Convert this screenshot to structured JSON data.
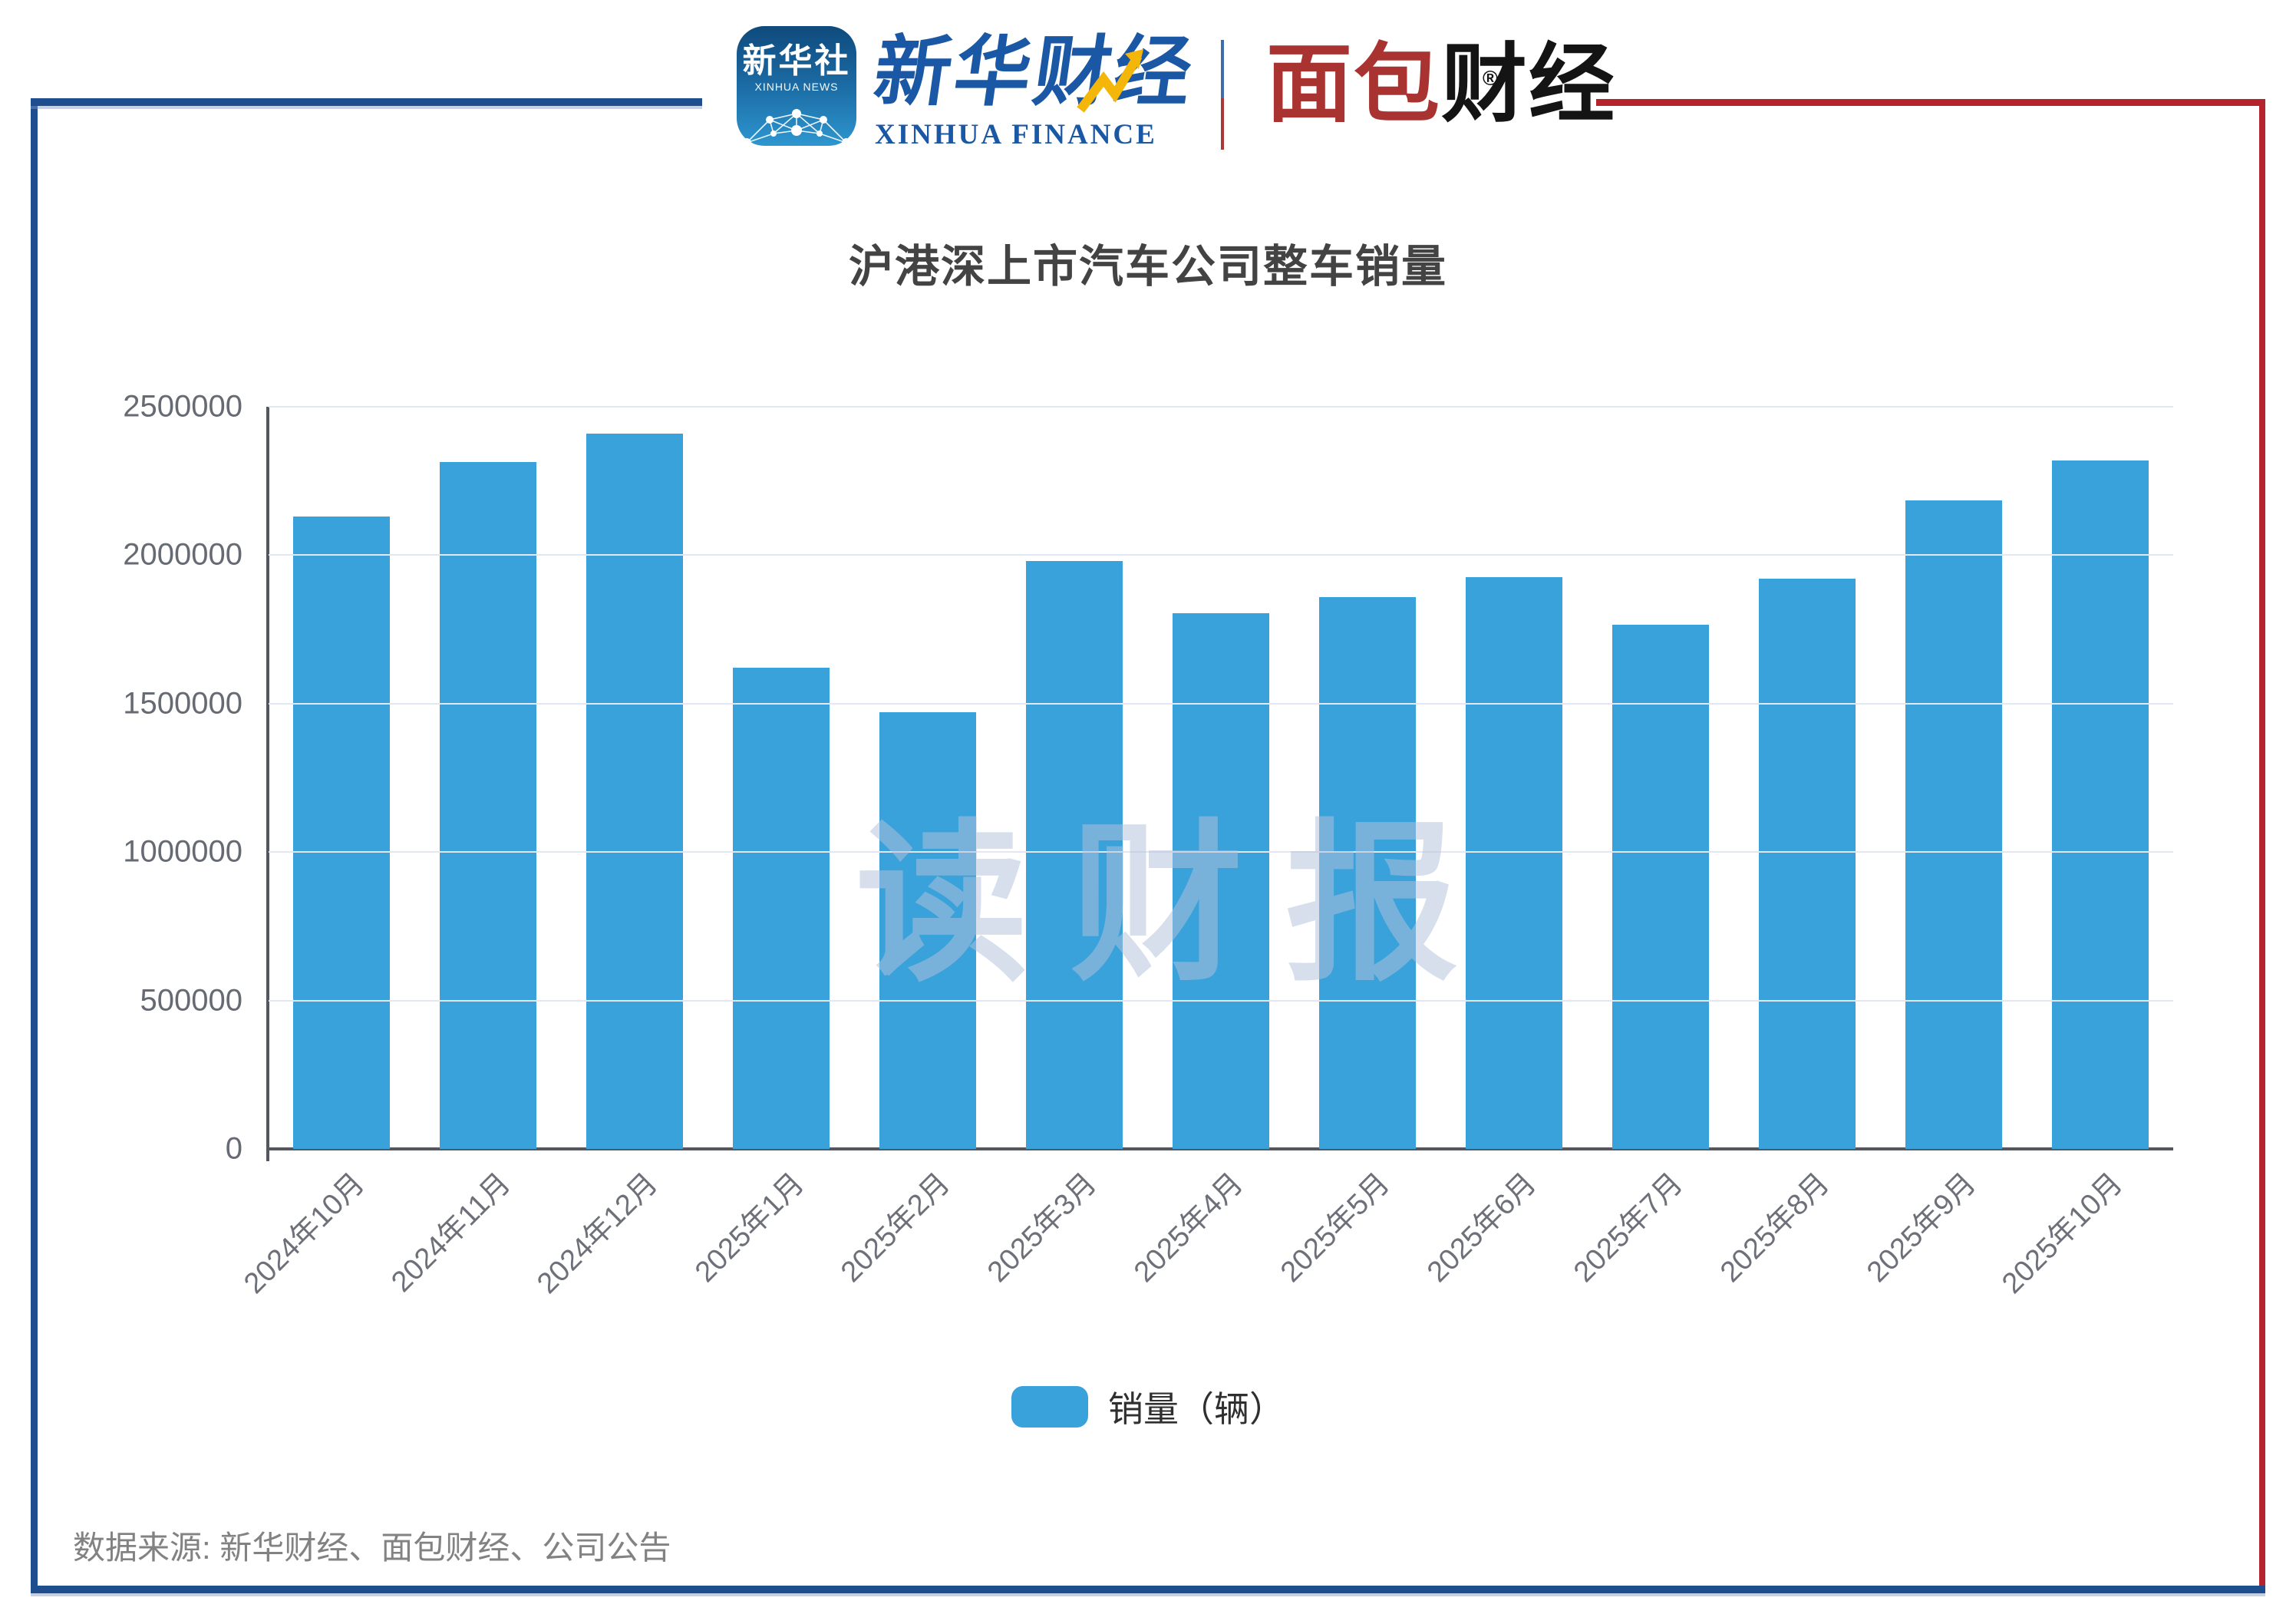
{
  "header": {
    "xinhua_icon": {
      "line1": "新华社",
      "line2": "XINHUA NEWS"
    },
    "xinhua_finance": {
      "cn": "新华财经",
      "en": "XINHUA FINANCE"
    },
    "mianbao": {
      "cn_red": "面包",
      "cn_black": "财经",
      "reg": "®"
    }
  },
  "chart_data": {
    "type": "bar",
    "title": "沪港深上市汽车公司整车销量",
    "categories": [
      "2024年10月",
      "2024年11月",
      "2024年12月",
      "2025年1月",
      "2025年2月",
      "2025年3月",
      "2025年4月",
      "2025年5月",
      "2025年6月",
      "2025年7月",
      "2025年8月",
      "2025年9月",
      "2025年10月"
    ],
    "series": [
      {
        "name": "销量（辆）",
        "values": [
          2130000,
          2315000,
          2410000,
          1620000,
          1470000,
          1980000,
          1805000,
          1860000,
          1925000,
          1765000,
          1920000,
          2185000,
          2320000
        ]
      }
    ],
    "xlabel": "",
    "ylabel": "",
    "ylim": [
      0,
      2500000
    ],
    "y_ticks": [
      "2500000",
      "2000000",
      "1500000",
      "1000000",
      "500000",
      "0"
    ],
    "grid": true,
    "legend_position": "bottom",
    "bar_color": "#3aa2db"
  },
  "legend": {
    "label": "销量（辆）"
  },
  "watermark": "读财报",
  "footer": {
    "source": "数据来源: 新华财经、面包财经、公司公告"
  },
  "colors": {
    "bar_blue": "#3aa2db",
    "frame_blue": "#1e4e8e",
    "frame_red": "#b5232d",
    "logo_red": "#a93330",
    "xinhua_blue": "#1a57a5",
    "gridline": "#e2e7f3",
    "axis": "#55575f"
  }
}
